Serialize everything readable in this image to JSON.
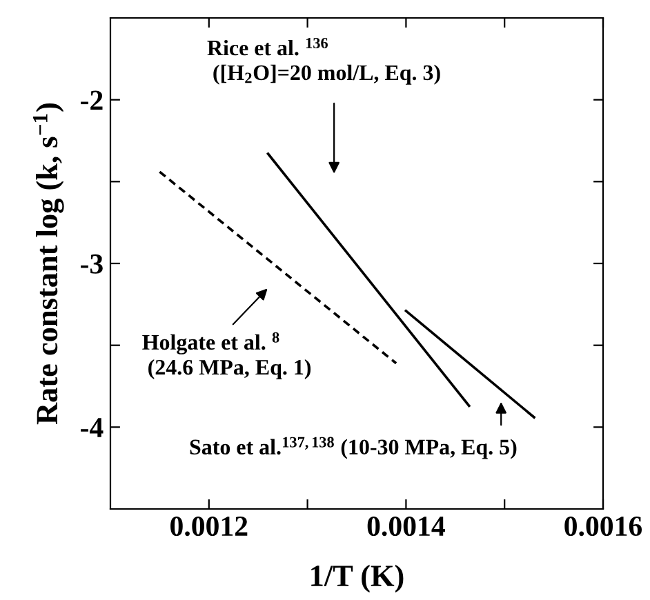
{
  "chart_data": {
    "type": "line",
    "xlabel": "1/T (K)",
    "ylabel": "Rate constant log (k, s$^{−1}$)",
    "series": [
      {
        "x": [
          0.00115,
          0.00139
        ],
        "values": [
          -2.44,
          -3.61
        ],
        "color": "#000000",
        "line_style": "dashed"
      },
      {
        "x": [
          0.00126,
          0.001464
        ],
        "values": [
          -2.33,
          -3.87
        ],
        "color": "#000000",
        "line_style": "solid"
      },
      {
        "x": [
          0.0014,
          0.00153
        ],
        "values": [
          -3.29,
          -3.94
        ],
        "color": "#000000",
        "line_style": "solid"
      }
    ],
    "annotations": [
      "Rice et al. $^{136}$\n ([H$_{2}$O]=20 mol/L, Eq. 3)",
      "Holgate et al. $^{8}$\n (24.6 MPa, Eq. 1)",
      "Sato et al.$^{137,138}$ (10-30 MPa, Eq. 5)"
    ],
    "xlim": [
      0.0011,
      0.0016
    ],
    "ylim": [
      -4.5,
      -1.5
    ],
    "xticks": [
      {
        "value": 0.0012,
        "label": "0.0012"
      },
      {
        "value": 0.0013,
        "label": null
      },
      {
        "value": 0.0014,
        "label": "0.0014"
      },
      {
        "value": 0.0015,
        "label": null
      },
      {
        "value": 0.0016,
        "label": "0.0016"
      }
    ],
    "yticks": [
      {
        "value": -2,
        "label": "-2"
      },
      {
        "value": -2.5,
        "label": null
      },
      {
        "value": -3,
        "label": "-3"
      },
      {
        "value": -3.5,
        "label": null
      },
      {
        "value": -4,
        "label": "-4"
      }
    ],
    "grid": false,
    "legend": false,
    "marker": "none"
  }
}
